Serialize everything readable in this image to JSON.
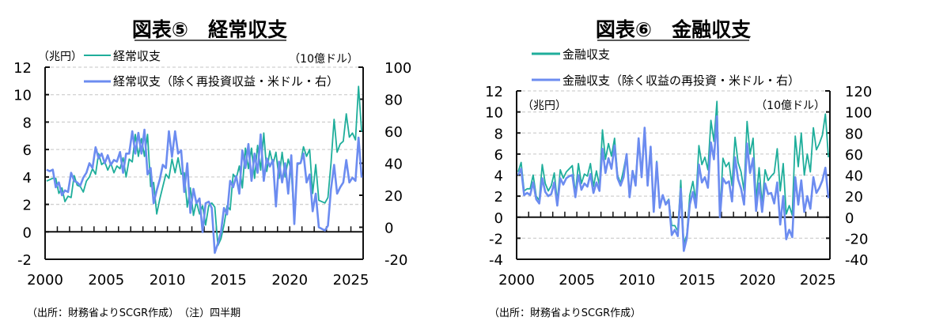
{
  "colors": {
    "green": "#1fae9b",
    "blue": "#6c8cf0",
    "axis": "#111111",
    "grid": "#d0d0d0"
  },
  "chart_data": [
    {
      "type": "line",
      "title": "図表⑤　経常収支",
      "left_unit": "（兆円）",
      "right_unit": "（10億ドル）",
      "legend": [
        "経常収支",
        "経常収支（除く再投資収益・米ドル・右）"
      ],
      "source": "（出所：財務省よりSCGR作成）　（注）四半期",
      "frequency": "quarterly",
      "x_start": 2000,
      "xlim": [
        2000,
        2026
      ],
      "xticks": [
        "2000",
        "2005",
        "2010",
        "2015",
        "2020",
        "2025"
      ],
      "ylim_left": [
        -2,
        12
      ],
      "yticks_left": [
        "12",
        "10",
        "8",
        "6",
        "4",
        "2",
        "0",
        "-2"
      ],
      "ylim_right": [
        -20,
        100
      ],
      "yticks_right": [
        "100",
        "80",
        "60",
        "40",
        "20",
        "0",
        "-20"
      ],
      "grid": true,
      "series": [
        {
          "name": "経常収支",
          "axis": "left",
          "values": [
            3.7,
            3.8,
            3.9,
            3.9,
            2.8,
            3.2,
            2.2,
            2.6,
            2.5,
            4.1,
            3.4,
            3.3,
            2.9,
            3.7,
            4.0,
            4.6,
            4.2,
            5.7,
            4.9,
            5.1,
            4.5,
            5.0,
            4.3,
            4.8,
            4.6,
            5.4,
            4.0,
            5.3,
            5.1,
            7.1,
            5.5,
            6.8,
            5.5,
            7.1,
            3.3,
            3.6,
            1.3,
            2.4,
            3.3,
            4.2,
            3.9,
            5.3,
            4.3,
            5.4,
            4.2,
            4.3,
            1.8,
            3.2,
            1.2,
            2.2,
            1.3,
            1.9,
            0.5,
            1.9,
            2.1,
            1.8,
            -1.0,
            -0.5,
            0.5,
            1.9,
            1.6,
            4.2,
            3.9,
            4.8,
            3.2,
            6.1,
            4.6,
            6.1,
            3.9,
            6.3,
            4.5,
            7.2,
            4.4,
            5.9,
            4.9,
            5.8,
            3.9,
            5.8,
            4.0,
            5.3,
            4.4,
            0.9,
            4.9,
            5.0,
            6.2,
            5.5,
            6.0,
            2.8,
            4.9,
            2.3,
            2.2,
            2.1,
            2.5,
            5.0,
            8.2,
            5.8,
            6.4,
            6.6,
            8.6,
            6.9,
            7.2,
            6.7,
            10.6,
            7.3
          ]
        },
        {
          "name": "経常収支（除く再投資収益・米ドル・右）",
          "axis": "right",
          "values": [
            36,
            35,
            36,
            25,
            28,
            20,
            23,
            22,
            34,
            29,
            28,
            26,
            31,
            34,
            40,
            37,
            50,
            43,
            46,
            40,
            45,
            39,
            42,
            41,
            47,
            34,
            46,
            46,
            60,
            46,
            59,
            46,
            61,
            33,
            37,
            15,
            23,
            30,
            39,
            37,
            60,
            44,
            60,
            46,
            48,
            22,
            40,
            9,
            24,
            15,
            18,
            -3,
            15,
            16,
            12,
            -16,
            -10,
            -3,
            12,
            8,
            29,
            25,
            32,
            21,
            48,
            37,
            52,
            29,
            46,
            34,
            58,
            29,
            43,
            38,
            42,
            13,
            41,
            28,
            40,
            21,
            45,
            2,
            40,
            40,
            46,
            28,
            33,
            10,
            21,
            0,
            -1,
            -2,
            1,
            24,
            39,
            21,
            25,
            28,
            42,
            28,
            31,
            29,
            56,
            31
          ]
        }
      ]
    },
    {
      "type": "line",
      "title": "図表⑥　金融収支",
      "left_unit": "（兆円）",
      "right_unit": "（10億ドル）",
      "legend": [
        "金融収支",
        "金融収支（除く収益の再投資・米ドル・右）"
      ],
      "source": "（出所：財務省よりSCGR作成）",
      "frequency": "quarterly",
      "x_start": 2000,
      "xlim": [
        2000,
        2026
      ],
      "xticks": [
        "2000",
        "2005",
        "2010",
        "2015",
        "2020",
        "2025"
      ],
      "ylim_left": [
        -4,
        12
      ],
      "yticks_left": [
        "12",
        "10",
        "8",
        "6",
        "4",
        "2",
        "0",
        "-2",
        "-4"
      ],
      "ylim_right": [
        -40,
        120
      ],
      "yticks_right": [
        "120",
        "100",
        "80",
        "60",
        "40",
        "20",
        "0",
        "-20",
        "-40"
      ],
      "grid": true,
      "series": [
        {
          "name": "金融収支",
          "axis": "left",
          "values": [
            4.3,
            5.2,
            2.5,
            2.7,
            2.7,
            4.0,
            2.0,
            1.6,
            5.0,
            3.2,
            2.5,
            3.0,
            4.2,
            1.5,
            4.5,
            3.7,
            4.3,
            4.6,
            4.9,
            2.2,
            5.1,
            3.2,
            4.1,
            3.9,
            5.1,
            2.9,
            4.4,
            3.0,
            8.3,
            5.5,
            7.0,
            5.8,
            7.5,
            4.0,
            3.2,
            4.5,
            6.0,
            2.0,
            4.4,
            3.5,
            7.4,
            3.8,
            8.4,
            3.0,
            6.7,
            0.6,
            5.3,
            1.0,
            2.1,
            1.3,
            1.7,
            -0.8,
            -0.8,
            -1.3,
            3.5,
            -2.5,
            -1.7,
            2.1,
            3.4,
            1.5,
            6.8,
            5.0,
            5.7,
            4.5,
            9.2,
            7.2,
            11.0,
            0.1,
            5.6,
            4.8,
            5.2,
            3.0,
            7.6,
            5.2,
            4.3,
            2.5,
            9.1,
            6.0,
            7.5,
            1.6,
            4.7,
            1.2,
            4.5,
            3.5,
            3.9,
            4.2,
            6.5,
            2.5,
            5.1,
            0.3,
            1.1,
            0.2,
            7.7,
            4.8,
            8.0,
            4.0,
            6.0,
            4.3,
            8.5,
            6.4,
            7.0,
            7.8,
            9.8,
            5.7
          ]
        },
        {
          "name": "金融収支（除く収益の再投資・米ドル・右）",
          "axis": "right",
          "values": [
            40,
            46,
            21,
            23,
            21,
            33,
            17,
            13,
            37,
            24,
            20,
            22,
            33,
            11,
            37,
            31,
            37,
            39,
            40,
            19,
            40,
            26,
            32,
            29,
            41,
            23,
            33,
            25,
            65,
            42,
            56,
            46,
            68,
            37,
            30,
            38,
            60,
            19,
            44,
            30,
            75,
            38,
            85,
            30,
            67,
            5,
            52,
            9,
            21,
            12,
            16,
            -17,
            -12,
            -18,
            27,
            -32,
            -20,
            12,
            24,
            9,
            50,
            33,
            38,
            28,
            71,
            55,
            96,
            0,
            37,
            32,
            34,
            15,
            57,
            36,
            27,
            12,
            70,
            42,
            56,
            6,
            32,
            5,
            32,
            22,
            23,
            13,
            33,
            -7,
            20,
            -21,
            -12,
            -19,
            38,
            12,
            35,
            5,
            20,
            8,
            38,
            23,
            28,
            35,
            47,
            18
          ]
        }
      ]
    }
  ]
}
